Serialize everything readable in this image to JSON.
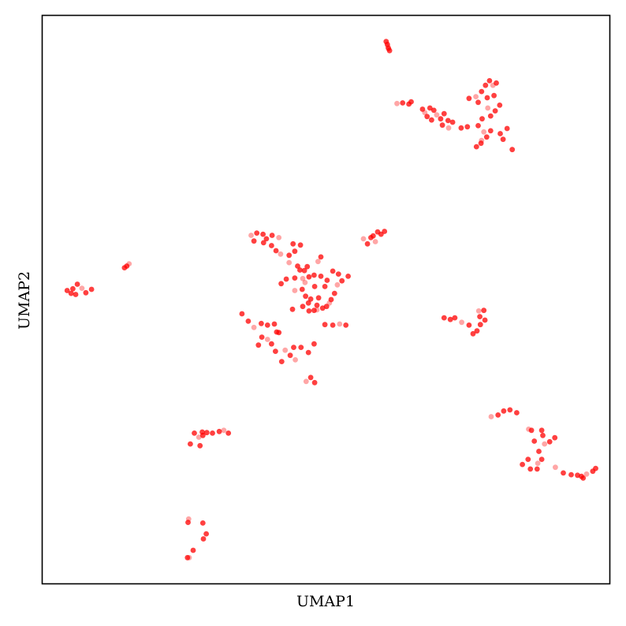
{
  "chart_data": {
    "type": "scatter",
    "title": "",
    "xlabel": "UMAP1",
    "ylabel": "UMAP2",
    "xticks": false,
    "yticks": false,
    "grid": false,
    "legend": "none",
    "xlim": [
      0,
      100
    ],
    "ylim": [
      0,
      100
    ],
    "point_color": "#ff0000",
    "series": [
      {
        "points": [
          [
            60.9,
            94.5
          ],
          [
            60.6,
            95.4
          ],
          [
            61.2,
            93.8
          ],
          [
            60.8,
            94.9
          ],
          [
            61.0,
            94.2
          ],
          [
            62.5,
            84.5
          ],
          [
            63.5,
            84.6
          ],
          [
            64.6,
            84.4
          ],
          [
            65.0,
            84.8
          ],
          [
            67.0,
            83.5
          ],
          [
            67.4,
            82.9
          ],
          [
            68.3,
            83.7
          ],
          [
            69.0,
            83.3
          ],
          [
            67.8,
            82.2
          ],
          [
            68.6,
            81.6
          ],
          [
            69.5,
            82.5
          ],
          [
            70.2,
            81.8
          ],
          [
            70.8,
            82.7
          ],
          [
            71.5,
            81.5
          ],
          [
            70.5,
            80.7
          ],
          [
            71.6,
            80.2
          ],
          [
            72.3,
            81.2
          ],
          [
            73.8,
            80.2
          ],
          [
            74.9,
            80.4
          ],
          [
            75.2,
            85.4
          ],
          [
            76.4,
            85.7
          ],
          [
            76.8,
            84.7
          ],
          [
            77.4,
            86.6
          ],
          [
            78.1,
            87.7
          ],
          [
            78.8,
            88.5
          ],
          [
            79.4,
            87.7
          ],
          [
            80.0,
            88.1
          ],
          [
            78.4,
            85.5
          ],
          [
            79.6,
            85.9
          ],
          [
            80.6,
            84.2
          ],
          [
            78.5,
            83.7
          ],
          [
            79.8,
            83.2
          ],
          [
            79.0,
            82.3
          ],
          [
            77.5,
            81.8
          ],
          [
            76.8,
            80.6
          ],
          [
            77.8,
            79.5
          ],
          [
            79.0,
            79.7
          ],
          [
            80.7,
            79.2
          ],
          [
            81.9,
            80.1
          ],
          [
            81.2,
            78.2
          ],
          [
            77.4,
            78.0
          ],
          [
            78.3,
            78.6
          ],
          [
            76.5,
            76.9
          ],
          [
            77.3,
            77.5
          ],
          [
            82.8,
            76.4
          ],
          [
            36.8,
            61.3
          ],
          [
            37.8,
            61.7
          ],
          [
            38.9,
            61.5
          ],
          [
            39.5,
            60.7
          ],
          [
            40.5,
            61.3
          ],
          [
            41.7,
            60.9
          ],
          [
            37.3,
            60.3
          ],
          [
            39.0,
            60.0
          ],
          [
            40.4,
            59.5
          ],
          [
            41.2,
            58.6
          ],
          [
            42.0,
            58.0
          ],
          [
            43.5,
            57.8
          ],
          [
            44.5,
            58.5
          ],
          [
            45.5,
            59.6
          ],
          [
            44.2,
            59.8
          ],
          [
            43.5,
            56.5
          ],
          [
            45.0,
            55.9
          ],
          [
            45.4,
            55.2
          ],
          [
            46.2,
            55.1
          ],
          [
            46.7,
            55.8
          ],
          [
            48.6,
            56.7
          ],
          [
            49.1,
            57.5
          ],
          [
            51.2,
            55.0
          ],
          [
            52.2,
            54.5
          ],
          [
            58.3,
            61.2
          ],
          [
            58.7,
            60.2
          ],
          [
            59.1,
            61.9
          ],
          [
            60.3,
            62.0
          ],
          [
            59.7,
            61.5
          ],
          [
            57.3,
            59.8
          ],
          [
            56.6,
            60.7
          ],
          [
            57.9,
            60.9
          ],
          [
            42.1,
            52.8
          ],
          [
            43.0,
            53.6
          ],
          [
            44.5,
            53.8
          ],
          [
            45.9,
            53.7
          ],
          [
            47.0,
            54.0
          ],
          [
            47.9,
            54.3
          ],
          [
            49.1,
            54.1
          ],
          [
            50.2,
            53.4
          ],
          [
            44.5,
            51.6
          ],
          [
            45.8,
            51.8
          ],
          [
            46.4,
            50.6
          ],
          [
            47.3,
            50.1
          ],
          [
            48.7,
            50.3
          ],
          [
            50.6,
            49.4
          ],
          [
            48.4,
            49.0
          ],
          [
            47.0,
            48.0
          ],
          [
            45.9,
            48.8
          ],
          [
            44.1,
            48.3
          ],
          [
            48.4,
            48.2
          ],
          [
            49.4,
            48.5
          ],
          [
            50.1,
            48.8
          ],
          [
            51.5,
            51.1
          ],
          [
            50.9,
            50.0
          ],
          [
            52.0,
            52.6
          ],
          [
            52.8,
            53.3
          ],
          [
            53.9,
            54.1
          ],
          [
            49.8,
            52.3
          ],
          [
            48.0,
            52.3
          ],
          [
            46.3,
            53.0
          ],
          [
            46.9,
            49.4
          ],
          [
            47.9,
            48.1
          ],
          [
            35.2,
            47.5
          ],
          [
            36.3,
            46.2
          ],
          [
            37.3,
            45.1
          ],
          [
            38.6,
            45.8
          ],
          [
            39.7,
            45.5
          ],
          [
            40.9,
            45.7
          ],
          [
            41.3,
            44.3
          ],
          [
            39.7,
            43.0
          ],
          [
            38.7,
            43.4
          ],
          [
            38.1,
            42.0
          ],
          [
            40.4,
            42.2
          ],
          [
            41.1,
            40.9
          ],
          [
            42.8,
            41.1
          ],
          [
            44.3,
            41.6
          ],
          [
            45.6,
            41.6
          ],
          [
            43.7,
            40.2
          ],
          [
            42.2,
            39.1
          ],
          [
            44.6,
            39.4
          ],
          [
            46.9,
            40.7
          ],
          [
            47.9,
            42.2
          ],
          [
            49.8,
            45.6
          ],
          [
            51.2,
            45.5
          ],
          [
            52.4,
            45.7
          ],
          [
            53.5,
            45.5
          ],
          [
            41.7,
            44.2
          ],
          [
            47.3,
            36.3
          ],
          [
            48.0,
            35.4
          ],
          [
            46.5,
            35.6
          ],
          [
            4.4,
            51.6
          ],
          [
            5.1,
            51.1
          ],
          [
            5.4,
            51.9
          ],
          [
            6.2,
            52.7
          ],
          [
            7.0,
            52.0
          ],
          [
            7.7,
            51.2
          ],
          [
            8.7,
            51.8
          ],
          [
            5.9,
            50.9
          ],
          [
            14.9,
            55.9
          ],
          [
            15.3,
            56.3
          ],
          [
            14.5,
            55.6
          ],
          [
            70.8,
            46.8
          ],
          [
            71.9,
            46.5
          ],
          [
            72.7,
            46.8
          ],
          [
            73.9,
            46.0
          ],
          [
            75.2,
            45.5
          ],
          [
            76.6,
            44.5
          ],
          [
            77.2,
            45.6
          ],
          [
            78.0,
            46.4
          ],
          [
            76.9,
            48.0
          ],
          [
            77.8,
            48.1
          ],
          [
            77.1,
            47.0
          ],
          [
            75.9,
            44.0
          ],
          [
            26.8,
            26.5
          ],
          [
            27.6,
            25.8
          ],
          [
            28.3,
            26.1
          ],
          [
            29.0,
            26.6
          ],
          [
            30.0,
            26.5
          ],
          [
            31.2,
            26.8
          ],
          [
            32.0,
            27.0
          ],
          [
            32.8,
            26.5
          ],
          [
            26.1,
            24.6
          ],
          [
            27.8,
            24.3
          ],
          [
            28.2,
            26.7
          ],
          [
            79.1,
            29.4
          ],
          [
            80.3,
            29.7
          ],
          [
            81.3,
            30.4
          ],
          [
            82.4,
            30.6
          ],
          [
            83.6,
            30.1
          ],
          [
            85.7,
            27.2
          ],
          [
            86.2,
            27.0
          ],
          [
            88.0,
            27.0
          ],
          [
            88.2,
            26.1
          ],
          [
            86.7,
            25.1
          ],
          [
            88.5,
            24.6
          ],
          [
            89.4,
            25.0
          ],
          [
            90.3,
            25.7
          ],
          [
            87.5,
            23.3
          ],
          [
            88.0,
            21.9
          ],
          [
            87.3,
            21.2
          ],
          [
            85.6,
            21.9
          ],
          [
            84.6,
            21.0
          ],
          [
            86.0,
            20.2
          ],
          [
            87.2,
            20.2
          ],
          [
            90.4,
            20.5
          ],
          [
            91.8,
            19.5
          ],
          [
            93.2,
            19.2
          ],
          [
            94.3,
            19.1
          ],
          [
            95.3,
            18.6
          ],
          [
            95.9,
            19.3
          ],
          [
            97.0,
            19.8
          ],
          [
            97.5,
            20.3
          ],
          [
            95.0,
            18.9
          ],
          [
            25.7,
            10.8
          ],
          [
            25.8,
            11.4
          ],
          [
            28.3,
            10.7
          ],
          [
            28.9,
            8.8
          ],
          [
            28.4,
            7.9
          ],
          [
            26.6,
            5.9
          ],
          [
            25.9,
            4.6
          ],
          [
            25.6,
            4.6
          ]
        ]
      }
    ]
  }
}
